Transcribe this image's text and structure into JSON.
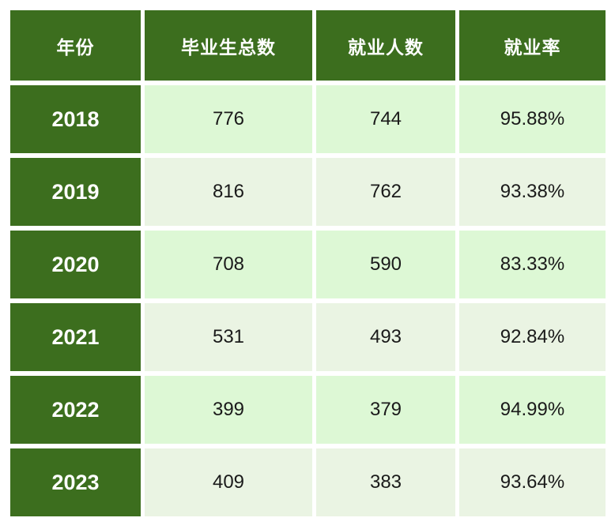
{
  "colors": {
    "header_bg": "#3c6e1e",
    "row_bright": "#ddf8d5",
    "row_pale": "#eaf4e3",
    "header_text": "#ffffff",
    "cell_text": "#1a1a1a",
    "gap": "#ffffff"
  },
  "chart_data": {
    "type": "table",
    "columns": [
      "年份",
      "毕业生总数",
      "就业人数",
      "就业率"
    ],
    "rows": [
      {
        "year": "2018",
        "total_graduates": 776,
        "employed": 744,
        "employment_rate": "95.88%"
      },
      {
        "year": "2019",
        "total_graduates": 816,
        "employed": 762,
        "employment_rate": "93.38%"
      },
      {
        "year": "2020",
        "total_graduates": 708,
        "employed": 590,
        "employment_rate": "83.33%"
      },
      {
        "year": "2021",
        "total_graduates": 531,
        "employed": 493,
        "employment_rate": "92.84%"
      },
      {
        "year": "2022",
        "total_graduates": 399,
        "employed": 379,
        "employment_rate": "94.99%"
      },
      {
        "year": "2023",
        "total_graduates": 409,
        "employed": 383,
        "employment_rate": "93.64%"
      }
    ]
  }
}
